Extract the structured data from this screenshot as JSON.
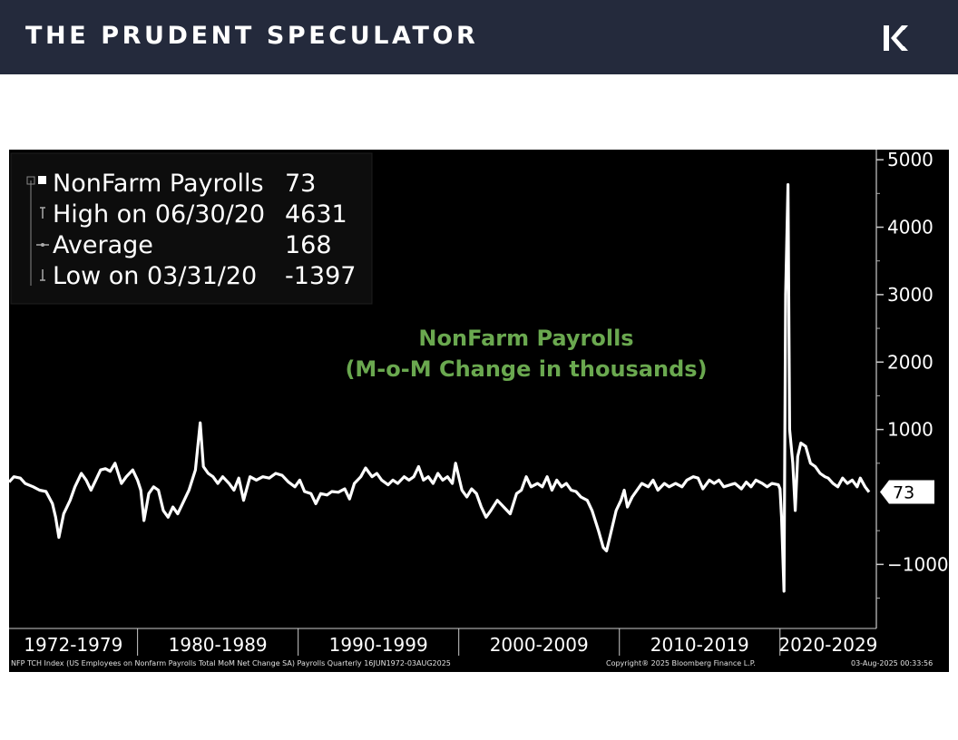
{
  "header": {
    "brand": "THE PRUDENT SPECULATOR",
    "logo_icon": "k-chevron-logo-icon",
    "background": "#242a3c"
  },
  "chart_data": {
    "type": "line",
    "title": "NonFarm Payrolls",
    "subtitle": "(M-o-M Change in thousands)",
    "x_unit": "year",
    "xlim": [
      1972.0,
      2026.0
    ],
    "ylim": [
      -1950,
      5150
    ],
    "y_ticks": [
      -1000,
      1000,
      2000,
      3000,
      4000,
      5000
    ],
    "x_tick_labels": [
      {
        "label": "1972-1979",
        "from": 1972,
        "to": 1980
      },
      {
        "label": "1980-1989",
        "from": 1980,
        "to": 1990
      },
      {
        "label": "1990-1999",
        "from": 1990,
        "to": 2000
      },
      {
        "label": "2000-2009",
        "from": 2000,
        "to": 2010
      },
      {
        "label": "2010-2019",
        "from": 2010,
        "to": 2020
      },
      {
        "label": "2020-2029",
        "from": 2020,
        "to": 2030
      }
    ],
    "series": [
      {
        "name": "NonFarm Payrolls",
        "color": "#ffffff",
        "points": [
          [
            1972.0,
            220
          ],
          [
            1972.3,
            300
          ],
          [
            1972.7,
            280
          ],
          [
            1973.0,
            200
          ],
          [
            1973.5,
            150
          ],
          [
            1973.9,
            100
          ],
          [
            1974.3,
            80
          ],
          [
            1974.7,
            -100
          ],
          [
            1974.9,
            -300
          ],
          [
            1975.1,
            -600
          ],
          [
            1975.4,
            -250
          ],
          [
            1975.8,
            -50
          ],
          [
            1976.1,
            150
          ],
          [
            1976.5,
            350
          ],
          [
            1976.8,
            250
          ],
          [
            1977.1,
            100
          ],
          [
            1977.4,
            250
          ],
          [
            1977.7,
            400
          ],
          [
            1978.0,
            420
          ],
          [
            1978.3,
            380
          ],
          [
            1978.6,
            500
          ],
          [
            1979.0,
            200
          ],
          [
            1979.3,
            300
          ],
          [
            1979.7,
            400
          ],
          [
            1980.0,
            250
          ],
          [
            1980.2,
            100
          ],
          [
            1980.4,
            -350
          ],
          [
            1980.7,
            50
          ],
          [
            1981.0,
            150
          ],
          [
            1981.3,
            100
          ],
          [
            1981.6,
            -200
          ],
          [
            1981.9,
            -300
          ],
          [
            1982.2,
            -150
          ],
          [
            1982.5,
            -250
          ],
          [
            1982.8,
            -100
          ],
          [
            1983.2,
            100
          ],
          [
            1983.6,
            400
          ],
          [
            1983.9,
            1100
          ],
          [
            1984.1,
            450
          ],
          [
            1984.4,
            350
          ],
          [
            1984.7,
            300
          ],
          [
            1985.0,
            200
          ],
          [
            1985.3,
            300
          ],
          [
            1985.7,
            200
          ],
          [
            1986.0,
            100
          ],
          [
            1986.3,
            280
          ],
          [
            1986.6,
            -50
          ],
          [
            1987.0,
            300
          ],
          [
            1987.4,
            250
          ],
          [
            1987.8,
            300
          ],
          [
            1988.2,
            280
          ],
          [
            1988.6,
            350
          ],
          [
            1989.0,
            320
          ],
          [
            1989.4,
            220
          ],
          [
            1989.8,
            150
          ],
          [
            1990.1,
            250
          ],
          [
            1990.4,
            80
          ],
          [
            1990.8,
            50
          ],
          [
            1991.1,
            -100
          ],
          [
            1991.4,
            50
          ],
          [
            1991.8,
            30
          ],
          [
            1992.1,
            80
          ],
          [
            1992.5,
            70
          ],
          [
            1992.9,
            120
          ],
          [
            1993.2,
            -30
          ],
          [
            1993.5,
            200
          ],
          [
            1993.9,
            300
          ],
          [
            1994.2,
            430
          ],
          [
            1994.6,
            300
          ],
          [
            1994.9,
            350
          ],
          [
            1995.2,
            250
          ],
          [
            1995.6,
            180
          ],
          [
            1995.9,
            250
          ],
          [
            1996.2,
            200
          ],
          [
            1996.6,
            300
          ],
          [
            1996.9,
            250
          ],
          [
            1997.2,
            300
          ],
          [
            1997.5,
            450
          ],
          [
            1997.8,
            250
          ],
          [
            1998.1,
            300
          ],
          [
            1998.4,
            200
          ],
          [
            1998.7,
            350
          ],
          [
            1999.0,
            250
          ],
          [
            1999.3,
            300
          ],
          [
            1999.6,
            200
          ],
          [
            1999.8,
            500
          ],
          [
            2000.0,
            300
          ],
          [
            2000.2,
            100
          ],
          [
            2000.5,
            0
          ],
          [
            2000.8,
            120
          ],
          [
            2001.1,
            50
          ],
          [
            2001.4,
            -150
          ],
          [
            2001.7,
            -300
          ],
          [
            2002.0,
            -200
          ],
          [
            2002.4,
            -50
          ],
          [
            2002.8,
            -150
          ],
          [
            2003.2,
            -250
          ],
          [
            2003.6,
            50
          ],
          [
            2003.9,
            100
          ],
          [
            2004.2,
            300
          ],
          [
            2004.5,
            150
          ],
          [
            2004.9,
            200
          ],
          [
            2005.2,
            150
          ],
          [
            2005.5,
            300
          ],
          [
            2005.8,
            100
          ],
          [
            2006.1,
            250
          ],
          [
            2006.4,
            150
          ],
          [
            2006.7,
            200
          ],
          [
            2007.0,
            100
          ],
          [
            2007.3,
            80
          ],
          [
            2007.6,
            0
          ],
          [
            2008.0,
            -50
          ],
          [
            2008.3,
            -200
          ],
          [
            2008.7,
            -500
          ],
          [
            2009.0,
            -750
          ],
          [
            2009.2,
            -800
          ],
          [
            2009.5,
            -500
          ],
          [
            2009.8,
            -200
          ],
          [
            2010.1,
            -50
          ],
          [
            2010.3,
            100
          ],
          [
            2010.5,
            -150
          ],
          [
            2010.8,
            0
          ],
          [
            2011.1,
            100
          ],
          [
            2011.4,
            200
          ],
          [
            2011.8,
            150
          ],
          [
            2012.1,
            250
          ],
          [
            2012.4,
            100
          ],
          [
            2012.8,
            200
          ],
          [
            2013.1,
            150
          ],
          [
            2013.5,
            200
          ],
          [
            2013.9,
            150
          ],
          [
            2014.2,
            250
          ],
          [
            2014.6,
            300
          ],
          [
            2014.9,
            280
          ],
          [
            2015.2,
            120
          ],
          [
            2015.6,
            250
          ],
          [
            2015.9,
            200
          ],
          [
            2016.2,
            250
          ],
          [
            2016.5,
            150
          ],
          [
            2016.9,
            180
          ],
          [
            2017.2,
            200
          ],
          [
            2017.6,
            120
          ],
          [
            2017.9,
            220
          ],
          [
            2018.2,
            150
          ],
          [
            2018.5,
            250
          ],
          [
            2018.9,
            200
          ],
          [
            2019.2,
            150
          ],
          [
            2019.5,
            200
          ],
          [
            2019.9,
            180
          ],
          [
            2020.0,
            120
          ],
          [
            2020.1,
            -300
          ],
          [
            2020.25,
            -1397
          ],
          [
            2020.35,
            3000
          ],
          [
            2020.5,
            4631
          ],
          [
            2020.6,
            1000
          ],
          [
            2020.8,
            500
          ],
          [
            2020.95,
            -200
          ],
          [
            2021.1,
            600
          ],
          [
            2021.3,
            800
          ],
          [
            2021.6,
            750
          ],
          [
            2021.9,
            500
          ],
          [
            2022.2,
            450
          ],
          [
            2022.5,
            350
          ],
          [
            2022.8,
            300
          ],
          [
            2023.0,
            280
          ],
          [
            2023.3,
            200
          ],
          [
            2023.6,
            150
          ],
          [
            2023.9,
            280
          ],
          [
            2024.2,
            200
          ],
          [
            2024.5,
            250
          ],
          [
            2024.8,
            150
          ],
          [
            2025.0,
            280
          ],
          [
            2025.3,
            150
          ],
          [
            2025.55,
            73
          ]
        ]
      }
    ],
    "legend": {
      "placement": "top-left",
      "rows": [
        {
          "label": "NonFarm Payrolls",
          "value": "73",
          "marker": "square"
        },
        {
          "label": "High on 06/30/20",
          "value": "4631",
          "marker": "high"
        },
        {
          "label": "Average",
          "value": "168",
          "marker": "average"
        },
        {
          "label": "Low on 03/31/20",
          "value": "-1397",
          "marker": "low"
        }
      ]
    },
    "last_value_tag": "73",
    "title_color": "#6aa84f",
    "background": "#000000",
    "footer": {
      "source": "NFP TCH Index (US Employees on Nonfarm Payrolls Total MoM Net Change SA) Payrolls  Quarterly 16JUN1972-03AUG2025",
      "copyright": "Copyright® 2025 Bloomberg Finance L.P.",
      "timestamp": "03-Aug-2025 00:33:56"
    }
  }
}
